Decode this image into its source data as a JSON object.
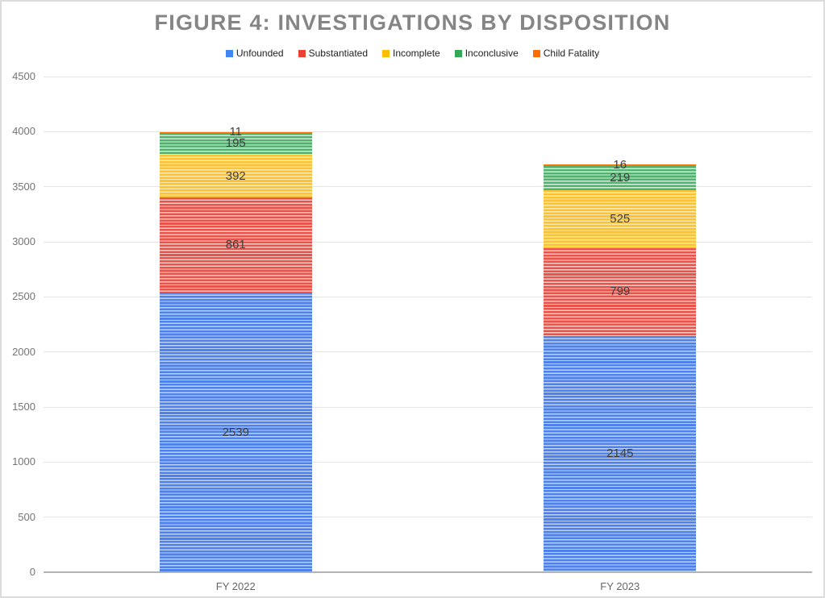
{
  "chart_data": {
    "type": "bar",
    "stacked": true,
    "title": "FIGURE 4: INVESTIGATIONS BY DISPOSITION",
    "categories": [
      "FY 2022",
      "FY 2023"
    ],
    "series": [
      {
        "name": "Unfounded",
        "values": [
          2539,
          2145
        ],
        "color": "#4285F4",
        "stripe_main": "#4e82ea",
        "stripe_light": "#bed1f8"
      },
      {
        "name": "Substantiated",
        "values": [
          861,
          799
        ],
        "color": "#EA4335",
        "stripe_main": "#ea5349",
        "stripe_light": "#f8cbc7"
      },
      {
        "name": "Incomplete",
        "values": [
          392,
          525
        ],
        "color": "#FBBC04",
        "stripe_main": "#fcc22f",
        "stripe_light": "#fdeab5"
      },
      {
        "name": "Inconclusive",
        "values": [
          195,
          219
        ],
        "color": "#34A853",
        "stripe_main": "#4fb26d",
        "stripe_light": "#d6eddd"
      },
      {
        "name": "Child Fatality",
        "values": [
          11,
          16
        ],
        "color": "#FF6D01",
        "stripe_main": "#f57511",
        "stripe_light": "#fcd9b8"
      }
    ],
    "y_axis": {
      "min": 0,
      "max": 4500,
      "step": 500,
      "tick_labels": [
        "0",
        "500",
        "1000",
        "1500",
        "2000",
        "2500",
        "3000",
        "3500",
        "4000",
        "4500"
      ]
    },
    "xlabel": "",
    "ylabel": "",
    "grid": true,
    "legend_position": "top",
    "bar_labels_visible": true
  }
}
